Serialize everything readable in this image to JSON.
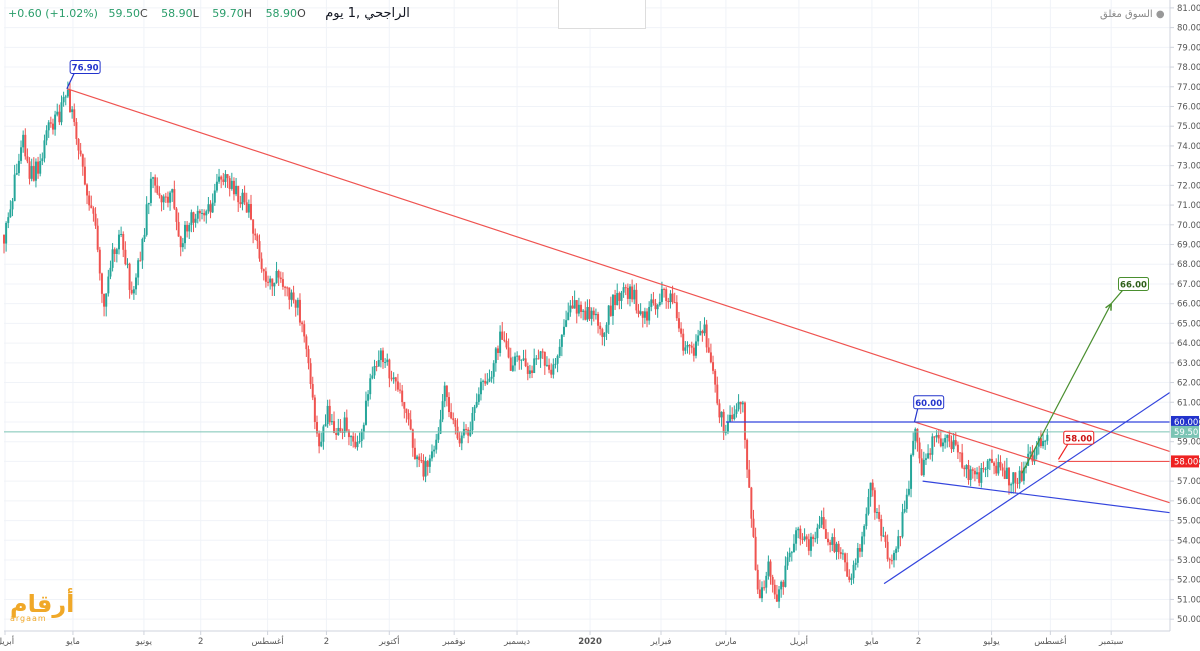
{
  "header": {
    "symbol": "الراجحي ,1 يوم",
    "open_label": "O",
    "open": "58.90",
    "high_label": "H",
    "high": "59.70",
    "low_label": "L",
    "low": "58.90",
    "close_label": "C",
    "close": "59.50",
    "change": "+0.60 (+1.02%)",
    "market_status": "السوق مغلق"
  },
  "logo": {
    "arabic": "أرقام",
    "latin": "argaam"
  },
  "colors": {
    "up": "#26a69a",
    "down": "#ef5350",
    "resistance": "#ef5350",
    "support": "#3344dd",
    "target": "#4a8f2f",
    "price_line": "#7bc4b4"
  },
  "chart_data": {
    "type": "candlestick",
    "ylim": [
      49.4,
      81.4
    ],
    "yticks": [
      50,
      51,
      52,
      53,
      54,
      55,
      56,
      57,
      58,
      59,
      60,
      61,
      62,
      63,
      64,
      65,
      66,
      67,
      68,
      69,
      70,
      71,
      72,
      73,
      74,
      75,
      76,
      77,
      78,
      79,
      80,
      81
    ],
    "x_ticks": [
      {
        "label": "أبريل",
        "x": 0.05
      },
      {
        "label": "مايو",
        "x": 3.4
      },
      {
        "label": "يونيو",
        "x": 6.9
      },
      {
        "label": "2",
        "x": 9.7
      },
      {
        "label": "أغسطس",
        "x": 13.0
      },
      {
        "label": "2",
        "x": 15.9
      },
      {
        "label": "أكتوبر",
        "x": 19.0
      },
      {
        "label": "نوفمبر",
        "x": 22.2
      },
      {
        "label": "ديسمبر",
        "x": 25.3
      },
      {
        "label": "2020",
        "x": 28.9
      },
      {
        "label": "فبراير",
        "x": 32.4
      },
      {
        "label": "مارس",
        "x": 35.6
      },
      {
        "label": "أبريل",
        "x": 39.2
      },
      {
        "label": "مايو",
        "x": 42.8
      },
      {
        "label": "2",
        "x": 45.1
      },
      {
        "label": "يوليو",
        "x": 48.7
      },
      {
        "label": "أغسطس",
        "x": 51.6
      },
      {
        "label": "سبتمبر",
        "x": 54.6
      }
    ],
    "xlim": [
      0,
      57.5
    ],
    "last_price": 59.5,
    "annotations": [
      {
        "text": "76.90",
        "x": 4.0,
        "y": 78.0,
        "anchor_x": 3.1,
        "anchor_y": 76.9,
        "style": "blue"
      },
      {
        "text": "60.00",
        "x": 45.6,
        "y": 61.0,
        "anchor_x": 44.9,
        "anchor_y": 60.0,
        "style": "blue"
      },
      {
        "text": "58.00",
        "x": 53.0,
        "y": 59.2,
        "anchor_x": 52.0,
        "anchor_y": 58.1,
        "style": "red"
      },
      {
        "text": "66.00",
        "x": 55.7,
        "y": 67.0,
        "anchor_x": 54.6,
        "anchor_y": 66.0,
        "style": "green"
      }
    ],
    "axis_price_labels": [
      {
        "text": "60.00",
        "y": 60.0,
        "style": "blue"
      },
      {
        "text": "59.50",
        "y": 59.5,
        "style": "teal"
      },
      {
        "text": "58.00",
        "y": 58.0,
        "style": "red"
      }
    ],
    "lines": [
      {
        "style": "resistance",
        "x1": 3.1,
        "y1": 76.9,
        "x2": 57.5,
        "y2": 58.5
      },
      {
        "style": "resistance",
        "x1": 44.9,
        "y1": 60.0,
        "x2": 57.5,
        "y2": 55.9
      },
      {
        "style": "resistance",
        "x1": 52.0,
        "y1": 58.0,
        "x2": 57.5,
        "y2": 58.0
      },
      {
        "style": "support",
        "x1": 35.6,
        "y1": 60.0,
        "x2": 57.5,
        "y2": 60.0
      },
      {
        "style": "support",
        "x1": 45.3,
        "y1": 57.0,
        "x2": 57.5,
        "y2": 55.4
      },
      {
        "style": "support",
        "x1": 43.4,
        "y1": 51.8,
        "x2": 57.5,
        "y2": 61.5
      },
      {
        "style": "target",
        "x1": 50.2,
        "y1": 57.4,
        "x2": 54.6,
        "y2": 66.0
      }
    ],
    "price_path": [
      [
        0,
        69.5
      ],
      [
        0.4,
        71.5
      ],
      [
        0.9,
        74.5
      ],
      [
        1.3,
        72.5
      ],
      [
        1.8,
        73.0
      ],
      [
        2.2,
        75.0
      ],
      [
        2.7,
        75.5
      ],
      [
        3.1,
        76.9
      ],
      [
        3.5,
        75.0
      ],
      [
        4.0,
        72.0
      ],
      [
        4.5,
        70.0
      ],
      [
        4.9,
        66.0
      ],
      [
        5.3,
        68.5
      ],
      [
        5.8,
        69.5
      ],
      [
        6.3,
        66.5
      ],
      [
        6.8,
        69.0
      ],
      [
        7.3,
        72.5
      ],
      [
        7.8,
        71.0
      ],
      [
        8.3,
        72.0
      ],
      [
        8.7,
        69.0
      ],
      [
        9.2,
        70.5
      ],
      [
        9.7,
        70.5
      ],
      [
        10.2,
        71.0
      ],
      [
        10.7,
        72.5
      ],
      [
        11.2,
        72.0
      ],
      [
        11.6,
        71.5
      ],
      [
        12.0,
        71.0
      ],
      [
        12.5,
        69.0
      ],
      [
        13.0,
        67.0
      ],
      [
        13.5,
        67.5
      ],
      [
        14.0,
        66.5
      ],
      [
        14.5,
        66.0
      ],
      [
        15.0,
        63.0
      ],
      [
        15.5,
        59.0
      ],
      [
        16.0,
        60.5
      ],
      [
        16.4,
        59.5
      ],
      [
        16.9,
        60.0
      ],
      [
        17.3,
        58.5
      ],
      [
        17.8,
        60.5
      ],
      [
        18.2,
        63.0
      ],
      [
        18.7,
        63.5
      ],
      [
        19.2,
        62.0
      ],
      [
        19.7,
        61.0
      ],
      [
        20.2,
        58.5
      ],
      [
        20.7,
        57.5
      ],
      [
        21.2,
        58.5
      ],
      [
        21.7,
        61.5
      ],
      [
        22.2,
        60.0
      ],
      [
        22.6,
        59.0
      ],
      [
        23.0,
        60.0
      ],
      [
        23.5,
        62.0
      ],
      [
        24.0,
        62.5
      ],
      [
        24.5,
        64.5
      ],
      [
        25.0,
        63.0
      ],
      [
        25.5,
        63.0
      ],
      [
        26.0,
        62.5
      ],
      [
        26.5,
        63.5
      ],
      [
        27.0,
        62.5
      ],
      [
        27.5,
        64.5
      ],
      [
        28.0,
        66.0
      ],
      [
        28.5,
        65.5
      ],
      [
        29.0,
        65.5
      ],
      [
        29.5,
        64.5
      ],
      [
        30.0,
        66.0
      ],
      [
        30.5,
        66.5
      ],
      [
        31.0,
        66.5
      ],
      [
        31.5,
        65.0
      ],
      [
        32.0,
        66.0
      ],
      [
        32.5,
        66.5
      ],
      [
        33.0,
        66.0
      ],
      [
        33.5,
        64.0
      ],
      [
        34.0,
        63.5
      ],
      [
        34.5,
        65.0
      ],
      [
        35.0,
        62.0
      ],
      [
        35.5,
        59.5
      ],
      [
        36.0,
        60.5
      ],
      [
        36.4,
        61.2
      ],
      [
        36.8,
        56.0
      ],
      [
        37.2,
        51.0
      ],
      [
        37.7,
        52.5
      ],
      [
        38.2,
        51.0
      ],
      [
        38.7,
        53.0
      ],
      [
        39.2,
        54.5
      ],
      [
        39.7,
        53.5
      ],
      [
        40.2,
        55.0
      ],
      [
        40.7,
        54.0
      ],
      [
        41.2,
        53.5
      ],
      [
        41.7,
        52.0
      ],
      [
        42.2,
        53.5
      ],
      [
        42.7,
        57.0
      ],
      [
        43.2,
        54.5
      ],
      [
        43.6,
        53.0
      ],
      [
        44.1,
        54.0
      ],
      [
        44.6,
        56.5
      ],
      [
        44.9,
        60.0
      ],
      [
        45.2,
        57.5
      ],
      [
        45.6,
        58.5
      ],
      [
        46.0,
        59.3
      ],
      [
        46.5,
        59.0
      ],
      [
        47.0,
        58.5
      ],
      [
        47.5,
        57.5
      ],
      [
        48.0,
        57.0
      ],
      [
        48.5,
        58.0
      ],
      [
        49.0,
        57.8
      ],
      [
        49.5,
        57.2
      ],
      [
        50.0,
        57.0
      ],
      [
        50.5,
        58.0
      ],
      [
        51.0,
        58.8
      ],
      [
        51.5,
        59.5
      ]
    ]
  }
}
